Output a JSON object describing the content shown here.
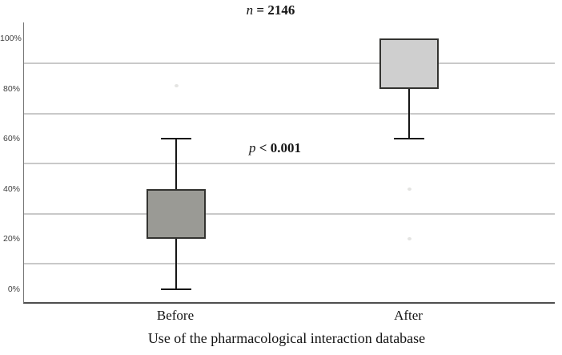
{
  "figure": {
    "title": {
      "variable": "n",
      "value": "= 2146"
    },
    "annotation": {
      "variable": "p",
      "value": "< 0.001"
    },
    "x_axis_title": "Use of the pharmacological interaction database"
  },
  "chart_data": {
    "type": "boxplot",
    "title": "n = 2146",
    "annotation": "p < 0.001",
    "xlabel": "Use of the pharmacological interaction database",
    "ylabel": "",
    "ylim": [
      -5,
      107
    ],
    "y_unit": "percent",
    "y_tick_values": [
      100,
      80,
      60,
      40,
      20,
      0
    ],
    "y_tick_labels": [
      "100%",
      "80%",
      "60%",
      "40%",
      "20%",
      "0%"
    ],
    "gridline_values": [
      90,
      70,
      50,
      30,
      10
    ],
    "grid": true,
    "legend": false,
    "categories": [
      "Before",
      "After"
    ],
    "boxes": [
      {
        "category": "Before",
        "whisker_low": 0,
        "q1": 20,
        "q3": 40,
        "whisker_high": 60,
        "median_line_shown": false,
        "fill": "#9a9a95",
        "faint_outliers": [
          81
        ]
      },
      {
        "category": "After",
        "whisker_low": 60,
        "q1": 80,
        "q3": 100,
        "whisker_high": 100,
        "median_line_shown": false,
        "fill": "#cfcfcf",
        "faint_outliers": [
          40,
          20
        ]
      }
    ],
    "colors": {
      "box_border": "#333330",
      "whisker": "#161616",
      "gridline": "#c9c9c9",
      "axis_line": "#4f4f4f",
      "tick_label": "#3f3f3f",
      "text": "#141414",
      "faint_outlier": "#e4e4e2",
      "background": "#ffffff"
    }
  }
}
